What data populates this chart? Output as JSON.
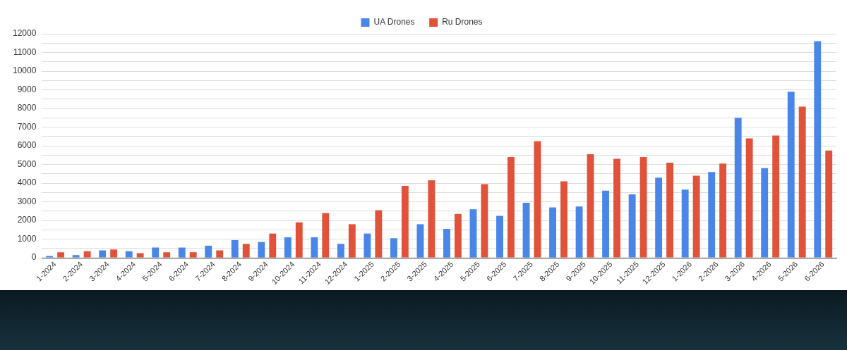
{
  "chart_data": {
    "type": "bar",
    "categories": [
      "1-2024",
      "2-2024",
      "3-2024",
      "4-2024",
      "5-2024",
      "6-2024",
      "7-2024",
      "8-2024",
      "9-2024",
      "10-2024",
      "11-2024",
      "12-2024",
      "1-2025",
      "2-2025",
      "3-2025",
      "4-2025",
      "5-2025",
      "6-2025",
      "7-2025",
      "8-2025",
      "9-2025",
      "10-2025",
      "11-2025",
      "12-2025",
      "1-2026",
      "2-2026",
      "3-2026",
      "4-2026",
      "5-2026",
      "6-2026"
    ],
    "series": [
      {
        "name": "UA Drones",
        "color": "#4a86e8",
        "values": [
          100,
          150,
          400,
          350,
          550,
          550,
          650,
          950,
          850,
          1100,
          1100,
          750,
          1300,
          1050,
          1800,
          1550,
          2600,
          2250,
          2950,
          2700,
          2750,
          3600,
          3400,
          4300,
          3650,
          4600,
          7500,
          4800,
          8900,
          11600
        ]
      },
      {
        "name": "Ru Drones",
        "color": "#e0533a",
        "values": [
          300,
          350,
          450,
          250,
          300,
          300,
          400,
          750,
          1300,
          1900,
          2400,
          1800,
          2550,
          3850,
          4150,
          2350,
          3950,
          5400,
          6250,
          4100,
          5550,
          5300,
          5400,
          5100,
          4400,
          5050,
          6400,
          6550,
          8100,
          5750
        ]
      }
    ],
    "ylim": [
      0,
      12000
    ],
    "yticks": [
      0,
      {
        "value": 500,
        "label": null
      },
      1000,
      {
        "value": 1500,
        "label": null
      },
      2000,
      {
        "value": 2500,
        "label": null
      },
      3000,
      {
        "value": 3500,
        "label": null
      },
      4000,
      {
        "value": 4500,
        "label": null
      },
      5000,
      {
        "value": 5500,
        "label": null
      },
      6000,
      {
        "value": 6500,
        "label": null
      },
      7000,
      {
        "value": 7500,
        "label": null
      },
      8000,
      {
        "value": 8500,
        "label": null
      },
      9000,
      {
        "value": 9500,
        "label": null
      },
      10000,
      {
        "value": 10500,
        "label": null
      },
      11000,
      {
        "value": 11500,
        "label": null
      },
      12000
    ],
    "grid": "y",
    "legend": "top"
  }
}
